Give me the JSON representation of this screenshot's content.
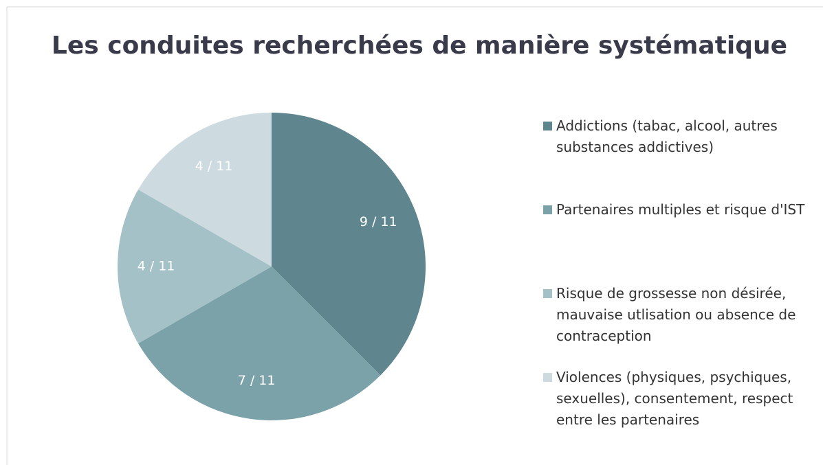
{
  "chart_data": {
    "type": "pie",
    "title": "Les conduites recherchées de manière systématique",
    "categories": [
      "Addictions (tabac, alcool, autres substances addictives)",
      "Partenaires multiples et risque d'IST",
      "Risque de grossesse non désirée, mauvaise utlisation ou absence de contraception",
      "Violences (physiques, psychiques, sexuelles), consentement, respect entre les partenaires"
    ],
    "values": [
      9,
      7,
      4,
      4
    ],
    "value_labels": [
      "9 / 11",
      "7 / 11",
      "4 / 11",
      "4 / 11"
    ],
    "colors": [
      "#5f868e",
      "#7ba1a9",
      "#a4c1c8",
      "#cddbe0"
    ],
    "legend": "right"
  }
}
